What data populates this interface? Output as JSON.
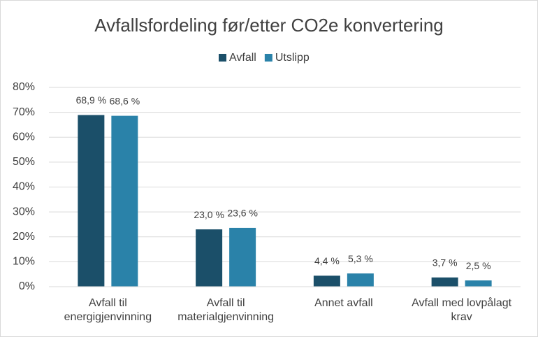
{
  "chart_data": {
    "type": "bar",
    "title": "Avfallsfordeling før/etter CO2e konvertering",
    "categories": [
      "Avfall til energigjenvinning",
      "Avfall til materialgjenvinning",
      "Annet avfall",
      "Avfall med lovpålagt krav"
    ],
    "series": [
      {
        "name": "Avfall",
        "color": "#1b4f69",
        "values": [
          68.9,
          23.0,
          4.4,
          3.7
        ],
        "value_labels": [
          "68,9 %",
          "23,0 %",
          "4,4 %",
          "3,7 %"
        ]
      },
      {
        "name": "Utslipp",
        "color": "#2a82a9",
        "values": [
          68.6,
          23.6,
          5.3,
          2.5
        ],
        "value_labels": [
          "68,6 %",
          "23,6 %",
          "5,3 %",
          "2,5 %"
        ]
      }
    ],
    "ylim": [
      0,
      80
    ],
    "yticks": [
      {
        "value": 0,
        "label": "0%"
      },
      {
        "value": 10,
        "label": "10%"
      },
      {
        "value": 20,
        "label": "20%"
      },
      {
        "value": 30,
        "label": "30%"
      },
      {
        "value": 40,
        "label": "40%"
      },
      {
        "value": 50,
        "label": "50%"
      },
      {
        "value": 60,
        "label": "60%"
      },
      {
        "value": 70,
        "label": "70%"
      },
      {
        "value": 80,
        "label": "80%"
      }
    ],
    "grid": true,
    "legend": "top"
  }
}
